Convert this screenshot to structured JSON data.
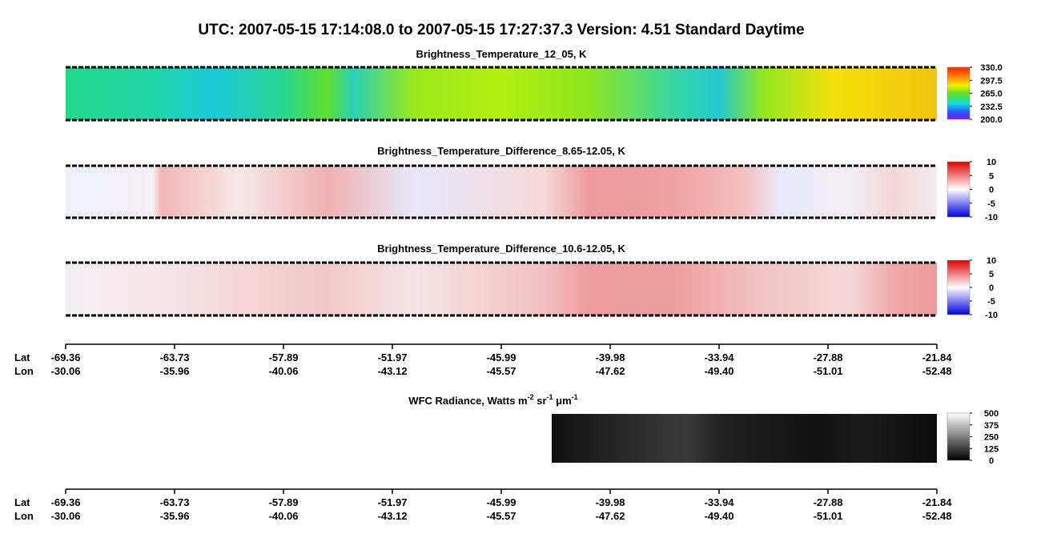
{
  "title": "UTC:  2007-05-15   17:14:08.0  to  2007-05-15   17:27:37.3    Version: 4.51  Standard Daytime",
  "panels": [
    {
      "title": "Brightness_Temperature_12_05, K",
      "colorbar_ticks": [
        "330.0",
        "297.5",
        "265.0",
        "232.5",
        "200.0"
      ]
    },
    {
      "title": "Brightness_Temperature_Difference_8.65-12.05, K",
      "colorbar_ticks": [
        "10",
        "5",
        "0",
        "-5",
        "-10"
      ]
    },
    {
      "title": "Brightness_Temperature_Difference_10.6-12.05, K",
      "colorbar_ticks": [
        "10",
        "5",
        "0",
        "-5",
        "-10"
      ]
    },
    {
      "title_parts": [
        "WFC Radiance, Watts m",
        "-2",
        " sr",
        "-1",
        " μm",
        "-1"
      ],
      "colorbar_ticks": [
        "500",
        "375",
        "250",
        "125",
        "0"
      ]
    }
  ],
  "axes": [
    {
      "lat_label": "Lat",
      "lon_label": "Lon",
      "lat": [
        "-69.36",
        "-63.73",
        "-57.89",
        "-51.97",
        "-45.99",
        "-39.98",
        "-33.94",
        "-27.88",
        "-21.84"
      ],
      "lon": [
        "-30.06",
        "-35.96",
        "-40.06",
        "-43.12",
        "-45.57",
        "-47.62",
        "-49.40",
        "-51.01",
        "-52.48"
      ]
    },
    {
      "lat_label": "Lat",
      "lon_label": "Lon",
      "lat": [
        "-69.36",
        "-63.73",
        "-57.89",
        "-51.97",
        "-45.99",
        "-39.98",
        "-33.94",
        "-27.88",
        "-21.84"
      ],
      "lon": [
        "-30.06",
        "-35.96",
        "-40.06",
        "-43.12",
        "-45.57",
        "-47.62",
        "-49.40",
        "-51.01",
        "-52.48"
      ]
    }
  ]
}
